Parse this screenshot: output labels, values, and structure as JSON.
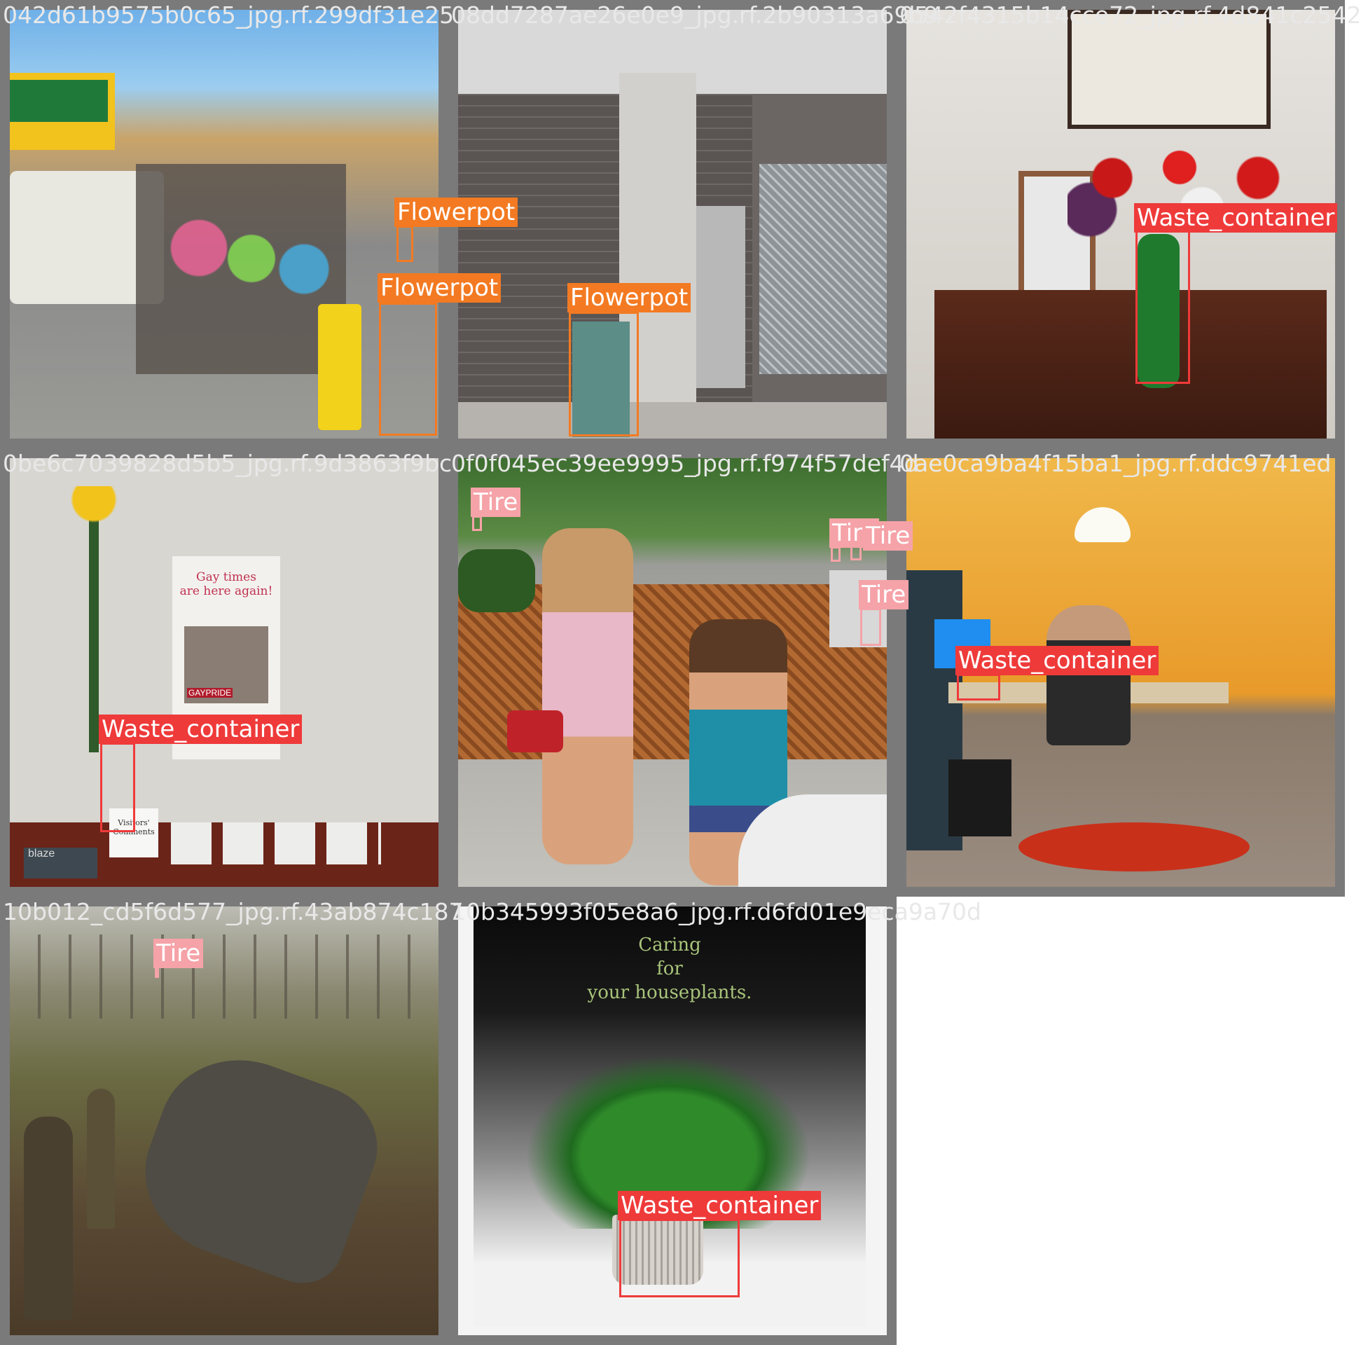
{
  "tiles": [
    {
      "filename": "042d61b9575b0c65_jpg.rf.299df31e25",
      "labels": [
        "Flowerpot",
        "Flowerpot"
      ]
    },
    {
      "filename": "08dd7287ae26e0e9_jpg.rf.2b90313a69b9",
      "labels": [
        "Flowerpot"
      ]
    },
    {
      "filename": "0542f4315b14cce72_jpg.rf.4d841c2542",
      "labels": [
        "Waste_container"
      ]
    },
    {
      "filename": "0be6c7039828d5b5_jpg.rf.9d3863f9bc",
      "labels": [
        "Waste_container"
      ],
      "poster": {
        "title_line1": "Gay times",
        "title_line2": "are here again!",
        "banner": "GAYPRIDE"
      },
      "card": "Visitors' Comments",
      "magazine": "blaze"
    },
    {
      "filename": "0f0f045ec39ee9995_jpg.rf.f974f57def4d",
      "labels": [
        "Tire",
        "Tire",
        "Tire",
        "Tire"
      ]
    },
    {
      "filename": "0ae0ca9ba4f15ba1_jpg.rf.ddc9741ed",
      "labels": [
        "Waste_container"
      ]
    },
    {
      "filename": "10b012_cd5f6d577_jpg.rf.43ab874c187",
      "labels": [
        "Tire"
      ]
    },
    {
      "filename": "10b345993f05e8a6_jpg.rf.d6fd01e9eca9a70d",
      "labels": [
        "Waste_container"
      ],
      "poster": {
        "line1": "Caring",
        "line2": "for",
        "line3": "your houseplants."
      }
    }
  ]
}
